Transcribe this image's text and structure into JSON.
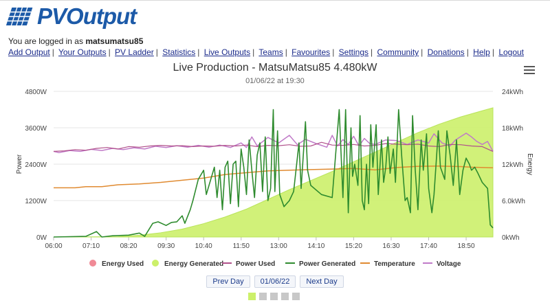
{
  "app": {
    "logo_text": "PVOutput"
  },
  "login": {
    "prefix": "You are logged in as",
    "username": "matsumatsu85"
  },
  "nav": [
    "Add Output",
    "Your Outputs",
    "PV Ladder",
    "Statistics",
    "Live Outputs",
    "Teams",
    "Favourites",
    "Settings",
    "Community",
    "Donations",
    "Help",
    "Logout"
  ],
  "chart_data": {
    "type": "line",
    "title": "Live Production - MatsuMatsu85 4.480kW",
    "subtitle": "01/06/22 at 19:30",
    "ylabel_left": "Power",
    "ylabel_right": "Energy",
    "ylim_left": [
      0,
      4800
    ],
    "ylim_right": [
      0,
      24
    ],
    "y_ticks_left": [
      "0W",
      "1200W",
      "2400W",
      "3600W",
      "4800W"
    ],
    "y_ticks_right": [
      "0kWh",
      "6.0kWh",
      "12kWh",
      "18kWh",
      "24kWh"
    ],
    "x_ticks": [
      "06:00",
      "07:10",
      "08:20",
      "09:30",
      "10:40",
      "11:50",
      "13:00",
      "14:10",
      "15:20",
      "16:30",
      "17:40",
      "18:50"
    ],
    "x_range_minutes": [
      360,
      1180
    ],
    "legend": [
      "Energy Used",
      "Energy Generated",
      "Power Used",
      "Power Generated",
      "Temperature",
      "Voltage"
    ],
    "colors": {
      "energy_used": "#f08a96",
      "energy_generated": "#ccf06a",
      "power_used": "#b0508a",
      "power_generated": "#2e8b2e",
      "temperature": "#e08a30",
      "voltage": "#c07ac8"
    },
    "series": {
      "energy_generated_kwh": [
        [
          360,
          0
        ],
        [
          480,
          0.05
        ],
        [
          520,
          0.3
        ],
        [
          560,
          0.7
        ],
        [
          600,
          1.3
        ],
        [
          640,
          2.2
        ],
        [
          680,
          3.3
        ],
        [
          720,
          4.6
        ],
        [
          760,
          6.2
        ],
        [
          800,
          7.8
        ],
        [
          840,
          9.3
        ],
        [
          880,
          10.8
        ],
        [
          920,
          12.4
        ],
        [
          960,
          14.0
        ],
        [
          1000,
          15.6
        ],
        [
          1040,
          17.2
        ],
        [
          1080,
          18.6
        ],
        [
          1120,
          19.8
        ],
        [
          1160,
          20.8
        ],
        [
          1180,
          21.3
        ]
      ],
      "power_generated_w": [
        [
          360,
          0
        ],
        [
          420,
          20
        ],
        [
          440,
          180
        ],
        [
          450,
          0
        ],
        [
          470,
          40
        ],
        [
          500,
          60
        ],
        [
          520,
          130
        ],
        [
          530,
          20
        ],
        [
          545,
          450
        ],
        [
          555,
          500
        ],
        [
          570,
          380
        ],
        [
          580,
          480
        ],
        [
          590,
          500
        ],
        [
          600,
          700
        ],
        [
          605,
          450
        ],
        [
          615,
          900
        ],
        [
          620,
          1200
        ],
        [
          630,
          1900
        ],
        [
          640,
          2200
        ],
        [
          645,
          1400
        ],
        [
          650,
          1700
        ],
        [
          660,
          2300
        ],
        [
          665,
          1300
        ],
        [
          670,
          2200
        ],
        [
          675,
          900
        ],
        [
          680,
          2300
        ],
        [
          685,
          2500
        ],
        [
          690,
          1100
        ],
        [
          695,
          2400
        ],
        [
          700,
          2500
        ],
        [
          705,
          1000
        ],
        [
          710,
          2900
        ],
        [
          715,
          2300
        ],
        [
          720,
          1400
        ],
        [
          725,
          3200
        ],
        [
          730,
          2200
        ],
        [
          735,
          1300
        ],
        [
          740,
          2700
        ],
        [
          745,
          3100
        ],
        [
          750,
          1500
        ],
        [
          755,
          3300
        ],
        [
          760,
          1200
        ],
        [
          765,
          1600
        ],
        [
          770,
          4200
        ],
        [
          773,
          1500
        ],
        [
          778,
          3500
        ],
        [
          782,
          1400
        ],
        [
          790,
          1000
        ],
        [
          800,
          1200
        ],
        [
          808,
          1500
        ],
        [
          818,
          3100
        ],
        [
          822,
          1600
        ],
        [
          830,
          3800
        ],
        [
          834,
          2200
        ],
        [
          840,
          1700
        ],
        [
          860,
          1400
        ],
        [
          880,
          1300
        ],
        [
          893,
          4200
        ],
        [
          900,
          1300
        ],
        [
          905,
          4200
        ],
        [
          910,
          800
        ],
        [
          915,
          3600
        ],
        [
          918,
          2000
        ],
        [
          922,
          2400
        ],
        [
          928,
          1700
        ],
        [
          932,
          4000
        ],
        [
          936,
          1200
        ],
        [
          940,
          900
        ],
        [
          944,
          2400
        ],
        [
          948,
          1100
        ],
        [
          952,
          3700
        ],
        [
          956,
          2300
        ],
        [
          962,
          3700
        ],
        [
          966,
          1400
        ],
        [
          972,
          3200
        ],
        [
          976,
          1800
        ],
        [
          980,
          2300
        ],
        [
          984,
          3300
        ],
        [
          988,
          2100
        ],
        [
          994,
          2900
        ],
        [
          998,
          1800
        ],
        [
          1004,
          4200
        ],
        [
          1010,
          2600
        ],
        [
          1016,
          1200
        ],
        [
          1020,
          1300
        ],
        [
          1026,
          800
        ],
        [
          1030,
          4000
        ],
        [
          1035,
          2200
        ],
        [
          1040,
          900
        ],
        [
          1046,
          3200
        ],
        [
          1050,
          2200
        ],
        [
          1056,
          3400
        ],
        [
          1060,
          1600
        ],
        [
          1066,
          800
        ],
        [
          1070,
          1400
        ],
        [
          1078,
          3500
        ],
        [
          1082,
          2300
        ],
        [
          1090,
          1900
        ],
        [
          1094,
          3500
        ],
        [
          1100,
          2700
        ],
        [
          1106,
          1700
        ],
        [
          1112,
          3200
        ],
        [
          1118,
          1400
        ],
        [
          1124,
          2200
        ],
        [
          1130,
          2600
        ],
        [
          1136,
          2400
        ],
        [
          1140,
          2200
        ],
        [
          1146,
          2300
        ],
        [
          1152,
          2100
        ],
        [
          1160,
          1800
        ],
        [
          1170,
          1600
        ],
        [
          1175,
          400
        ],
        [
          1180,
          300
        ]
      ],
      "power_used_w": [
        [
          360,
          2820
        ],
        [
          380,
          2840
        ],
        [
          400,
          2880
        ],
        [
          420,
          2860
        ],
        [
          440,
          2920
        ],
        [
          460,
          2950
        ],
        [
          480,
          2900
        ],
        [
          500,
          2980
        ],
        [
          520,
          2960
        ],
        [
          540,
          3000
        ],
        [
          560,
          3020
        ],
        [
          580,
          3000
        ],
        [
          600,
          3010
        ],
        [
          620,
          2980
        ],
        [
          640,
          3000
        ],
        [
          660,
          2990
        ],
        [
          680,
          3020
        ],
        [
          700,
          3000
        ],
        [
          720,
          3030
        ],
        [
          740,
          2980
        ],
        [
          760,
          3020
        ],
        [
          780,
          3010
        ],
        [
          800,
          3040
        ],
        [
          820,
          2990
        ],
        [
          840,
          3000
        ],
        [
          860,
          3120
        ],
        [
          880,
          3030
        ],
        [
          900,
          3020
        ],
        [
          920,
          3050
        ],
        [
          940,
          3000
        ],
        [
          960,
          3020
        ],
        [
          980,
          3080
        ],
        [
          1000,
          3060
        ],
        [
          1020,
          3040
        ],
        [
          1040,
          3060
        ],
        [
          1060,
          3000
        ],
        [
          1080,
          2980
        ],
        [
          1100,
          3050
        ],
        [
          1120,
          3040
        ],
        [
          1140,
          3000
        ],
        [
          1160,
          2980
        ],
        [
          1180,
          2820
        ]
      ],
      "temperature_c": [
        [
          360,
          1620
        ],
        [
          400,
          1620
        ],
        [
          420,
          1660
        ],
        [
          450,
          1660
        ],
        [
          480,
          1720
        ],
        [
          520,
          1750
        ],
        [
          560,
          1800
        ],
        [
          600,
          1870
        ],
        [
          640,
          1940
        ],
        [
          680,
          2060
        ],
        [
          720,
          2120
        ],
        [
          760,
          2180
        ],
        [
          800,
          2200
        ],
        [
          840,
          2220
        ],
        [
          880,
          2240
        ],
        [
          920,
          2260
        ],
        [
          960,
          2210
        ],
        [
          1000,
          2290
        ],
        [
          1040,
          2330
        ],
        [
          1080,
          2340
        ],
        [
          1120,
          2320
        ],
        [
          1140,
          2300
        ],
        [
          1180,
          2280
        ]
      ],
      "voltage_v": [
        [
          360,
          2820
        ],
        [
          370,
          2780
        ],
        [
          390,
          2850
        ],
        [
          410,
          2820
        ],
        [
          430,
          2890
        ],
        [
          450,
          2850
        ],
        [
          470,
          2920
        ],
        [
          490,
          2880
        ],
        [
          510,
          2940
        ],
        [
          530,
          2900
        ],
        [
          550,
          2990
        ],
        [
          570,
          2950
        ],
        [
          590,
          3010
        ],
        [
          610,
          2960
        ],
        [
          630,
          3020
        ],
        [
          650,
          2960
        ],
        [
          670,
          3030
        ],
        [
          690,
          2950
        ],
        [
          710,
          3100
        ],
        [
          720,
          2950
        ],
        [
          730,
          3300
        ],
        [
          740,
          3000
        ],
        [
          760,
          3280
        ],
        [
          780,
          3100
        ],
        [
          800,
          3350
        ],
        [
          815,
          3040
        ],
        [
          830,
          3220
        ],
        [
          850,
          3080
        ],
        [
          870,
          2960
        ],
        [
          880,
          3350
        ],
        [
          890,
          3000
        ],
        [
          900,
          3210
        ],
        [
          910,
          3050
        ],
        [
          920,
          3320
        ],
        [
          930,
          3000
        ],
        [
          940,
          3250
        ],
        [
          950,
          3080
        ],
        [
          960,
          3050
        ],
        [
          980,
          3200
        ],
        [
          1000,
          3180
        ],
        [
          1020,
          3050
        ],
        [
          1040,
          3200
        ],
        [
          1060,
          3100
        ],
        [
          1070,
          3400
        ],
        [
          1085,
          3100
        ],
        [
          1100,
          3000
        ],
        [
          1110,
          3200
        ],
        [
          1130,
          3420
        ],
        [
          1140,
          3300
        ],
        [
          1150,
          3150
        ],
        [
          1160,
          3050
        ],
        [
          1170,
          3150
        ],
        [
          1180,
          2820
        ]
      ]
    }
  },
  "controls": {
    "prev_day": "Prev Day",
    "date": "01/06/22",
    "next_day": "Next Day"
  },
  "pager": {
    "count": 5,
    "active": 0
  }
}
